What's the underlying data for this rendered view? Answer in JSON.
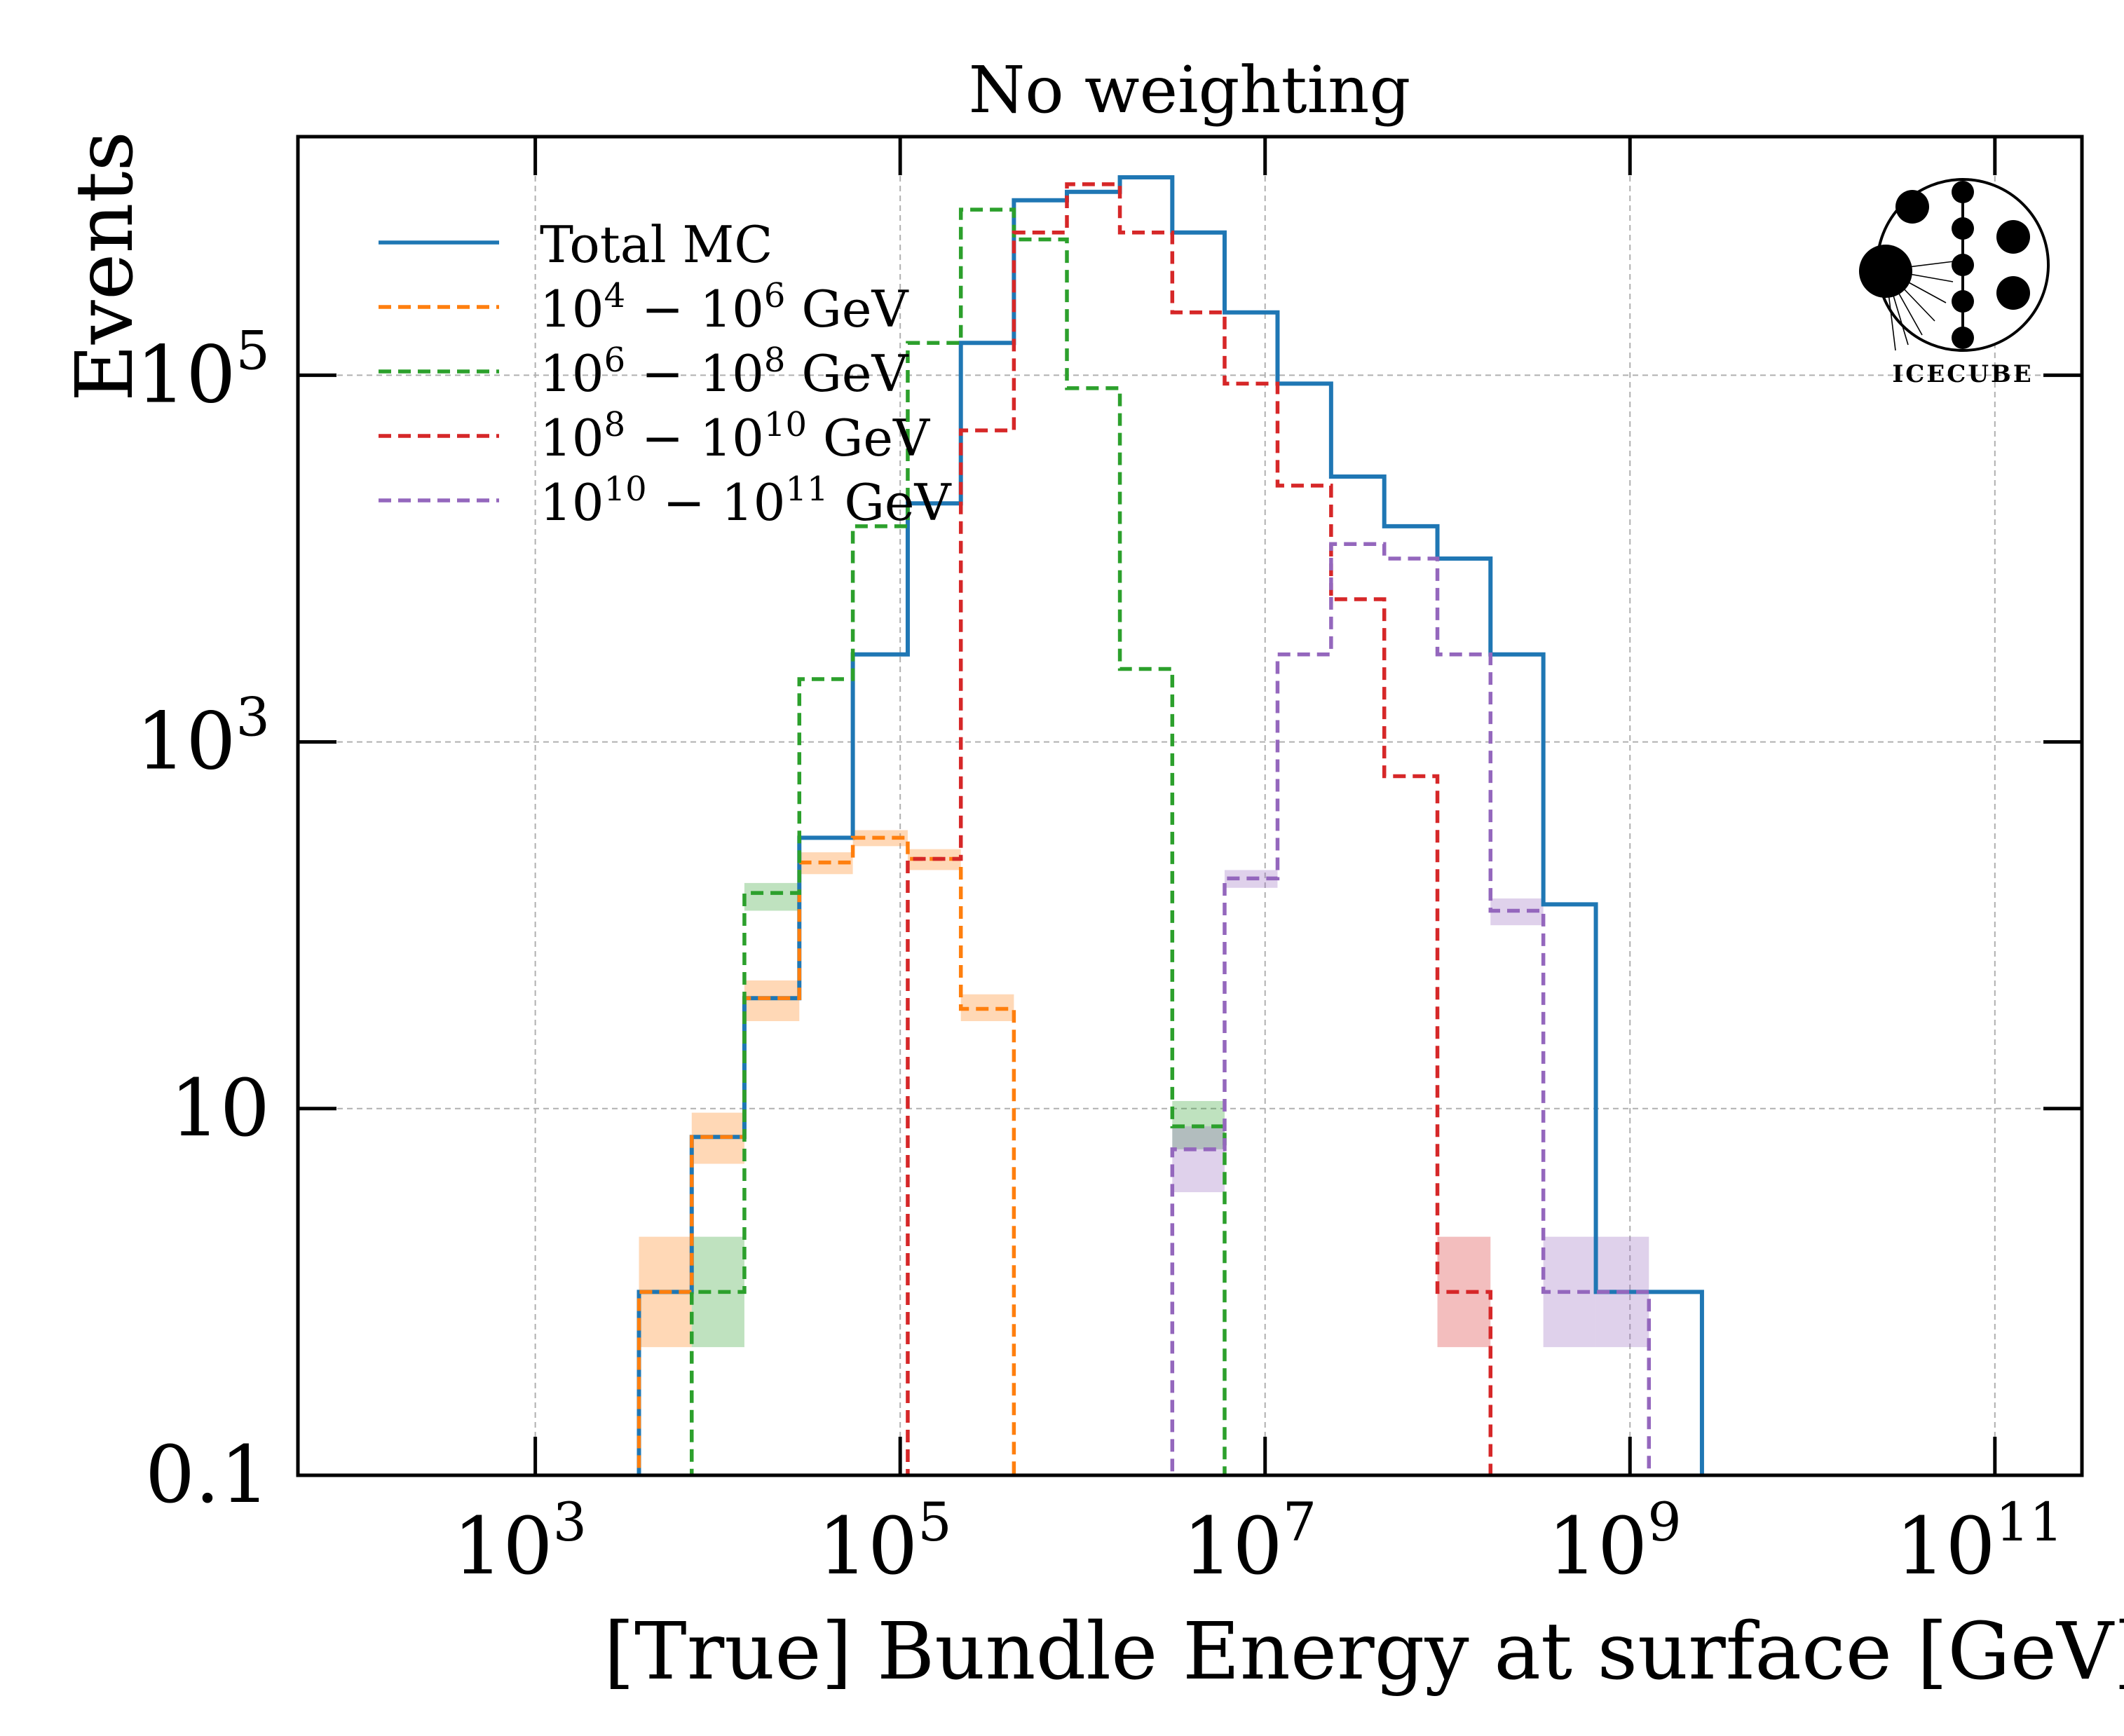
{
  "chart_data": {
    "type": "histogram-step",
    "title": "No weighting",
    "xlabel": "[True] Bundle Energy at surface [GeV]",
    "ylabel": "Events",
    "x_scale": "log",
    "y_scale": "log",
    "x_range": [
      50,
      300000000000.0
    ],
    "y_range": [
      0.1,
      2000000
    ],
    "x_ticks": [
      {
        "value": 1000,
        "mant": "10",
        "exp": "3"
      },
      {
        "value": 100000,
        "mant": "10",
        "exp": "5"
      },
      {
        "value": 10000000,
        "mant": "10",
        "exp": "7"
      },
      {
        "value": 1000000000,
        "mant": "10",
        "exp": "9"
      },
      {
        "value": 100000000000,
        "mant": "10",
        "exp": "11"
      }
    ],
    "y_ticks": [
      {
        "value": 0.1,
        "mant": "0.1",
        "exp": ""
      },
      {
        "value": 10,
        "mant": "10",
        "exp": ""
      },
      {
        "value": 1000,
        "mant": "10",
        "exp": "3"
      },
      {
        "value": 100000,
        "mant": "10",
        "exp": "5"
      }
    ],
    "grid": true,
    "legend_position": "top-left",
    "bin_edges": [
      2000,
      3700,
      7200,
      14000,
      28000,
      55000,
      110000,
      215000,
      420000,
      820000,
      1600000,
      3100000,
      6000000,
      11700000,
      23000000,
      45000000,
      88000000,
      172000000,
      335000000,
      650000000,
      1270000000,
      2480000000,
      4850000000
    ],
    "series": [
      {
        "name": "Total MC",
        "color": "#1f77b4",
        "dash": "solid",
        "values": [
          0.05,
          1,
          7,
          40,
          300,
          3000,
          20000,
          150000,
          900000,
          1000000,
          1200000,
          600000,
          220000,
          90000,
          28000,
          15000,
          10000,
          3000,
          130,
          1,
          1,
          0.05
        ]
      },
      {
        "name": "10^4 − 10^6 GeV",
        "label": {
          "a": "10",
          "a_exp": "4",
          "sep": " − ",
          "b": "10",
          "b_exp": "6",
          "unit": " GeV"
        },
        "color": "#ff7f0e",
        "dash": "dashed",
        "values": [
          0.05,
          1,
          7,
          40,
          220,
          300,
          230,
          35,
          0.05,
          0.05,
          0.05,
          0.05,
          0.05,
          0.05,
          0.05,
          0.05,
          0.05,
          0.05,
          0.05,
          0.05,
          0.05,
          0.05
        ],
        "band": [
          null,
          [
            0.5,
            2
          ],
          [
            5,
            9.5
          ],
          [
            30,
            50
          ],
          [
            190,
            250
          ],
          [
            270,
            330
          ],
          [
            200,
            260
          ],
          [
            30,
            42
          ],
          null,
          null,
          null,
          null,
          null,
          null,
          null,
          null,
          null,
          null,
          null,
          null,
          null,
          null
        ]
      },
      {
        "name": "10^6 − 10^8 GeV",
        "label": {
          "a": "10",
          "a_exp": "6",
          "sep": " − ",
          "b": "10",
          "b_exp": "8",
          "unit": " GeV"
        },
        "color": "#2ca02c",
        "dash": "dashed",
        "values": [
          0.05,
          0.05,
          1,
          150,
          2200,
          15000,
          150000,
          800000,
          550000,
          85000,
          2500,
          8,
          0.05,
          0.05,
          0.05,
          0.05,
          0.05,
          0.05,
          0.05,
          0.05,
          0.05,
          0.05
        ],
        "band": [
          null,
          null,
          [
            0.5,
            2
          ],
          [
            120,
            170
          ],
          null,
          null,
          null,
          null,
          null,
          null,
          null,
          [
            6,
            11
          ],
          null,
          null,
          null,
          null,
          null,
          null,
          null,
          null,
          null,
          null
        ]
      },
      {
        "name": "10^8 − 10^10 GeV",
        "label": {
          "a": "10",
          "a_exp": "8",
          "sep": " − ",
          "b": "10",
          "b_exp": "10",
          "unit": " GeV"
        },
        "color": "#d62728",
        "dash": "dashed",
        "values": [
          0.05,
          0.05,
          0.05,
          0.05,
          0.05,
          0.05,
          230,
          50000,
          600000,
          1100000,
          600000,
          220000,
          90000,
          25000,
          6000,
          650,
          1,
          0.05,
          0.05,
          0.05,
          0.05,
          0.05
        ],
        "band": [
          null,
          null,
          null,
          null,
          null,
          null,
          null,
          null,
          null,
          null,
          null,
          null,
          null,
          null,
          null,
          null,
          [
            0.5,
            2
          ],
          null,
          null,
          null,
          null,
          null
        ]
      },
      {
        "name": "10^10 − 10^11 GeV",
        "label": {
          "a": "10",
          "a_exp": "10",
          "sep": " − ",
          "b": "10",
          "b_exp": "11",
          "unit": " GeV"
        },
        "color": "#9467bd",
        "dash": "dashed",
        "values": [
          0.05,
          0.05,
          0.05,
          0.05,
          0.05,
          0.05,
          0.05,
          0.05,
          0.05,
          0.05,
          0.05,
          6,
          180,
          3000,
          12000,
          10000,
          3000,
          120,
          1,
          1,
          0.05,
          0.05
        ],
        "band": [
          null,
          null,
          null,
          null,
          null,
          null,
          null,
          null,
          null,
          null,
          null,
          [
            3.5,
            8
          ],
          [
            160,
            200
          ],
          null,
          null,
          null,
          null,
          [
            100,
            140
          ],
          [
            0.5,
            2
          ],
          [
            0.5,
            2
          ],
          null,
          null
        ]
      }
    ]
  },
  "logo": {
    "text": "ICECUBE",
    "name": "icecube-logo"
  }
}
